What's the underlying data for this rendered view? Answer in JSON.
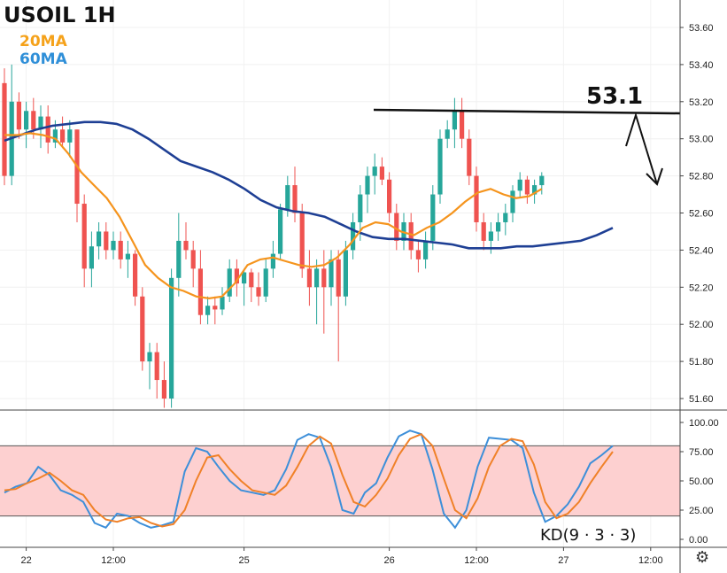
{
  "chart_data": {
    "type": "candlestick",
    "title": "USOIL 1H",
    "legend": [
      {
        "name": "20MA",
        "color": "#f5a21b"
      },
      {
        "name": "60MA",
        "color": "#2f8fd8"
      }
    ],
    "colors": {
      "up": "#26a69a",
      "down": "#ef5350",
      "ma20_line": "#f5941d",
      "ma60_line": "#1e3f94",
      "k_line": "#3d8fd9",
      "d_line": "#f08128",
      "kd_band": "#fdd0d0"
    },
    "price_axis": {
      "ticks": [
        "53.60",
        "53.40",
        "53.20",
        "53.00",
        "52.80",
        "52.60",
        "52.40",
        "52.20",
        "52.00",
        "51.80",
        "51.60"
      ],
      "range": [
        51.55,
        53.65
      ]
    },
    "kd_axis": {
      "ticks": [
        "100.00",
        "75.00",
        "50.00",
        "25.00",
        "0.00"
      ],
      "range": [
        0,
        100
      ],
      "band": [
        20,
        80
      ]
    },
    "x_labels": [
      {
        "label": "22",
        "index": 3
      },
      {
        "label": "12:00",
        "index": 15
      },
      {
        "label": "25",
        "index": 33
      },
      {
        "label": "26",
        "index": 53
      },
      {
        "label": "12:00",
        "index": 65
      },
      {
        "label": "27",
        "index": 77
      },
      {
        "label": "12:00",
        "index": 89
      }
    ],
    "candles": [
      [
        53.3,
        53.38,
        52.75,
        52.8
      ],
      [
        52.8,
        53.4,
        52.75,
        53.2
      ],
      [
        53.2,
        53.25,
        53.0,
        53.05
      ],
      [
        53.05,
        53.2,
        52.95,
        53.15
      ],
      [
        53.15,
        53.22,
        53.0,
        53.05
      ],
      [
        53.05,
        53.18,
        52.95,
        53.12
      ],
      [
        53.12,
        53.18,
        52.92,
        52.98
      ],
      [
        52.98,
        53.1,
        52.95,
        53.05
      ],
      [
        53.05,
        53.12,
        52.95,
        52.98
      ],
      [
        52.98,
        53.1,
        52.9,
        53.05
      ],
      [
        53.05,
        53.05,
        52.55,
        52.65
      ],
      [
        52.65,
        52.7,
        52.2,
        52.3
      ],
      [
        52.3,
        52.5,
        52.2,
        52.42
      ],
      [
        52.42,
        52.55,
        52.35,
        52.5
      ],
      [
        52.5,
        52.55,
        52.35,
        52.4
      ],
      [
        52.4,
        52.5,
        52.35,
        52.45
      ],
      [
        52.45,
        52.5,
        52.3,
        52.35
      ],
      [
        52.35,
        52.45,
        52.25,
        52.38
      ],
      [
        52.38,
        52.4,
        52.1,
        52.15
      ],
      [
        52.15,
        52.2,
        51.75,
        51.8
      ],
      [
        51.8,
        51.9,
        51.65,
        51.85
      ],
      [
        51.85,
        51.9,
        51.6,
        51.7
      ],
      [
        51.7,
        51.8,
        51.55,
        51.6
      ],
      [
        51.6,
        52.3,
        51.55,
        52.25
      ],
      [
        52.25,
        52.6,
        52.15,
        52.45
      ],
      [
        52.45,
        52.55,
        52.35,
        52.4
      ],
      [
        52.4,
        52.45,
        52.2,
        52.3
      ],
      [
        52.3,
        52.4,
        52.0,
        52.05
      ],
      [
        52.05,
        52.15,
        52.0,
        52.1
      ],
      [
        52.1,
        52.15,
        52.0,
        52.08
      ],
      [
        52.08,
        52.2,
        52.05,
        52.15
      ],
      [
        52.15,
        52.35,
        52.12,
        52.3
      ],
      [
        52.3,
        52.35,
        52.15,
        52.22
      ],
      [
        52.22,
        52.3,
        52.1,
        52.28
      ],
      [
        52.28,
        52.3,
        52.12,
        52.2
      ],
      [
        52.2,
        52.28,
        52.1,
        52.15
      ],
      [
        52.15,
        52.35,
        52.12,
        52.3
      ],
      [
        52.3,
        52.45,
        52.25,
        52.38
      ],
      [
        52.38,
        52.65,
        52.35,
        52.62
      ],
      [
        52.62,
        52.8,
        52.58,
        52.75
      ],
      [
        52.75,
        52.85,
        52.55,
        52.6
      ],
      [
        52.6,
        52.65,
        52.25,
        52.3
      ],
      [
        52.3,
        52.4,
        52.1,
        52.2
      ],
      [
        52.2,
        52.35,
        52.0,
        52.3
      ],
      [
        52.3,
        52.4,
        51.95,
        52.2
      ],
      [
        52.2,
        52.4,
        52.1,
        52.35
      ],
      [
        52.35,
        52.4,
        51.8,
        52.15
      ],
      [
        52.15,
        52.45,
        52.1,
        52.4
      ],
      [
        52.4,
        52.6,
        52.35,
        52.55
      ],
      [
        52.55,
        52.75,
        52.45,
        52.7
      ],
      [
        52.7,
        52.85,
        52.6,
        52.8
      ],
      [
        52.8,
        52.92,
        52.7,
        52.85
      ],
      [
        52.85,
        52.9,
        52.75,
        52.78
      ],
      [
        52.78,
        52.82,
        52.55,
        52.6
      ],
      [
        52.6,
        52.65,
        52.4,
        52.45
      ],
      [
        52.45,
        52.6,
        52.4,
        52.55
      ],
      [
        52.55,
        52.6,
        52.35,
        52.4
      ],
      [
        52.4,
        52.45,
        52.28,
        52.35
      ],
      [
        52.35,
        52.5,
        52.3,
        52.45
      ],
      [
        52.45,
        52.75,
        52.4,
        52.7
      ],
      [
        52.7,
        53.05,
        52.65,
        53.0
      ],
      [
        53.0,
        53.1,
        52.95,
        53.05
      ],
      [
        53.05,
        53.22,
        52.95,
        53.15
      ],
      [
        53.15,
        53.22,
        52.95,
        53.0
      ],
      [
        53.0,
        53.05,
        52.75,
        52.8
      ],
      [
        52.8,
        52.85,
        52.5,
        52.55
      ],
      [
        52.55,
        52.6,
        52.4,
        52.45
      ],
      [
        52.45,
        52.55,
        52.38,
        52.5
      ],
      [
        52.5,
        52.6,
        52.45,
        52.55
      ],
      [
        52.55,
        52.65,
        52.48,
        52.6
      ],
      [
        52.6,
        52.75,
        52.55,
        52.72
      ],
      [
        52.72,
        52.82,
        52.68,
        52.78
      ],
      [
        52.78,
        52.8,
        52.65,
        52.7
      ],
      [
        52.7,
        52.78,
        52.65,
        52.75
      ],
      [
        52.75,
        52.82,
        52.7,
        52.8
      ]
    ],
    "ma20": [
      53.02,
      53.02,
      53.03,
      53.02,
      53.0,
      52.92,
      52.82,
      52.75,
      52.68,
      52.58,
      52.45,
      52.32,
      52.25,
      52.2,
      52.18,
      52.15,
      52.14,
      52.15,
      52.22,
      52.32,
      52.35,
      52.36,
      52.34,
      52.32,
      52.31,
      52.32,
      52.36,
      52.43,
      52.52,
      52.55,
      52.54,
      52.5,
      52.48,
      52.52,
      52.55,
      52.6,
      52.66,
      52.71,
      52.73,
      52.7,
      52.68,
      52.69,
      52.73
    ],
    "ma60": [
      52.99,
      53.02,
      53.05,
      53.07,
      53.08,
      53.09,
      53.09,
      53.08,
      53.05,
      53.0,
      52.94,
      52.88,
      52.85,
      52.82,
      52.78,
      52.73,
      52.67,
      52.63,
      52.61,
      52.6,
      52.58,
      52.54,
      52.5,
      52.47,
      52.46,
      52.46,
      52.45,
      52.44,
      52.43,
      52.41,
      52.41,
      52.41,
      52.42,
      52.42,
      52.43,
      52.44,
      52.45,
      52.48,
      52.52
    ],
    "kd_k": [
      40,
      45,
      48,
      62,
      55,
      42,
      38,
      32,
      14,
      10,
      22,
      20,
      14,
      10,
      12,
      15,
      58,
      78,
      75,
      62,
      50,
      42,
      40,
      38,
      42,
      60,
      85,
      90,
      87,
      62,
      25,
      22,
      40,
      48,
      70,
      88,
      93,
      90,
      60,
      22,
      10,
      25,
      62,
      87,
      86,
      85,
      78,
      40,
      15,
      20,
      30,
      45,
      65,
      72,
      80
    ],
    "kd_d": [
      42,
      43,
      48,
      52,
      57,
      50,
      42,
      38,
      25,
      17,
      15,
      18,
      19,
      14,
      11,
      13,
      25,
      50,
      70,
      72,
      60,
      50,
      42,
      40,
      38,
      46,
      62,
      80,
      88,
      82,
      55,
      32,
      28,
      38,
      52,
      72,
      86,
      90,
      80,
      52,
      25,
      18,
      35,
      62,
      80,
      86,
      84,
      64,
      32,
      18,
      22,
      32,
      48,
      62,
      75
    ],
    "resistance": {
      "label": "53.1",
      "value": 53.14
    }
  }
}
